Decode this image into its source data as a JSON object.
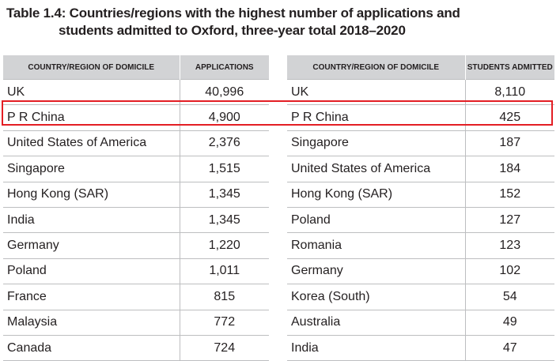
{
  "title": {
    "line1": "Table 1.4: Countries/regions with the highest number of applications and",
    "line2": "students admitted to Oxford, three-year total 2018–2020"
  },
  "applications_table": {
    "headers": [
      "COUNTRY/REGION OF DOMICILE",
      "APPLICATIONS"
    ],
    "rows": [
      {
        "country": "UK",
        "value": "40,996"
      },
      {
        "country": "P R China",
        "value": "4,900"
      },
      {
        "country": "United States of America",
        "value": "2,376"
      },
      {
        "country": "Singapore",
        "value": "1,515"
      },
      {
        "country": "Hong Kong (SAR)",
        "value": "1,345"
      },
      {
        "country": "India",
        "value": "1,345"
      },
      {
        "country": "Germany",
        "value": "1,220"
      },
      {
        "country": "Poland",
        "value": "1,011"
      },
      {
        "country": "France",
        "value": "815"
      },
      {
        "country": "Malaysia",
        "value": "772"
      },
      {
        "country": "Canada",
        "value": "724"
      }
    ]
  },
  "admitted_table": {
    "headers": [
      "COUNTRY/REGION OF DOMICILE",
      "STUDENTS ADMITTED"
    ],
    "rows": [
      {
        "country": "UK",
        "value": "8,110"
      },
      {
        "country": "P R China",
        "value": "425"
      },
      {
        "country": "Singapore",
        "value": "187"
      },
      {
        "country": "United States of America",
        "value": "184"
      },
      {
        "country": "Hong Kong (SAR)",
        "value": "152"
      },
      {
        "country": "Poland",
        "value": "127"
      },
      {
        "country": "Romania",
        "value": "123"
      },
      {
        "country": "Germany",
        "value": "102"
      },
      {
        "country": "Korea (South)",
        "value": "54"
      },
      {
        "country": "Australia",
        "value": "49"
      },
      {
        "country": "India",
        "value": "47"
      }
    ]
  },
  "colors": {
    "header_background": "#d2d3d5",
    "highlight_border": "#e31e24",
    "text": "#231f20",
    "rule": "#bdbec0"
  }
}
